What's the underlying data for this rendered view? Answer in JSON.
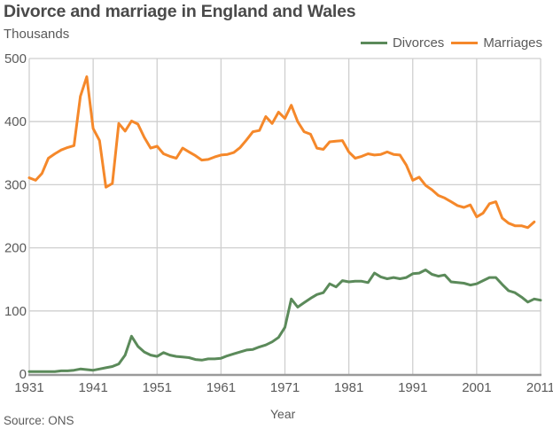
{
  "header": {
    "title": "Divorce and marriage in England and Wales",
    "units": "Thousands"
  },
  "legend": {
    "items": [
      {
        "label": "Divorces",
        "color": "#5b8a5a"
      },
      {
        "label": "Marriages",
        "color": "#f5882a"
      }
    ]
  },
  "footer": {
    "source": "Source: ONS",
    "xlabel": "Year"
  },
  "chart_data": {
    "type": "line",
    "title": "Divorce and marriage in England and Wales",
    "xlabel": "Year",
    "ylabel": "Thousands",
    "xlim": [
      1931,
      2011
    ],
    "ylim": [
      0,
      500
    ],
    "xticks": [
      1931,
      1941,
      1951,
      1961,
      1971,
      1981,
      1991,
      2001,
      2011
    ],
    "yticks": [
      0,
      100,
      200,
      300,
      400,
      500
    ],
    "grid": true,
    "legend_position": "top-right",
    "source": "ONS",
    "x": [
      1931,
      1932,
      1933,
      1934,
      1935,
      1936,
      1937,
      1938,
      1939,
      1940,
      1941,
      1942,
      1943,
      1944,
      1945,
      1946,
      1947,
      1948,
      1949,
      1950,
      1951,
      1952,
      1953,
      1954,
      1955,
      1956,
      1957,
      1958,
      1959,
      1960,
      1961,
      1962,
      1963,
      1964,
      1965,
      1966,
      1967,
      1968,
      1969,
      1970,
      1971,
      1972,
      1973,
      1974,
      1975,
      1976,
      1977,
      1978,
      1979,
      1980,
      1981,
      1982,
      1983,
      1984,
      1985,
      1986,
      1987,
      1988,
      1989,
      1990,
      1991,
      1992,
      1993,
      1994,
      1995,
      1996,
      1997,
      1998,
      1999,
      2000,
      2001,
      2002,
      2003,
      2004,
      2005,
      2006,
      2007,
      2008,
      2009,
      2010,
      2011
    ],
    "series": [
      {
        "name": "Divorces",
        "color": "#5b8a5a",
        "values": [
          4,
          4,
          4,
          4,
          4,
          5,
          5,
          6,
          8,
          7,
          6,
          8,
          10,
          12,
          16,
          30,
          60,
          44,
          35,
          30,
          28,
          34,
          30,
          28,
          27,
          26,
          23,
          22,
          24,
          24,
          25,
          29,
          32,
          35,
          38,
          39,
          43,
          46,
          51,
          58,
          74,
          119,
          106,
          113,
          120,
          126,
          129,
          143,
          138,
          148,
          146,
          147,
          147,
          145,
          160,
          154,
          151,
          153,
          151,
          153,
          159,
          160,
          165,
          158,
          155,
          157,
          146,
          145,
          144,
          141,
          143,
          148,
          153,
          153,
          142,
          132,
          129,
          122,
          114,
          119,
          117
        ]
      },
      {
        "name": "Marriages",
        "color": "#f5882a",
        "values": [
          311,
          307,
          318,
          342,
          349,
          355,
          359,
          362,
          440,
          471,
          389,
          370,
          296,
          302,
          397,
          385,
          401,
          396,
          375,
          358,
          361,
          349,
          345,
          342,
          358,
          352,
          346,
          339,
          340,
          344,
          347,
          348,
          351,
          359,
          371,
          384,
          386,
          408,
          397,
          415,
          405,
          426,
          400,
          384,
          380,
          358,
          356,
          368,
          369,
          370,
          352,
          342,
          345,
          349,
          347,
          348,
          352,
          348,
          347,
          331,
          307,
          312,
          299,
          292,
          283,
          279,
          273,
          267,
          264,
          268,
          249,
          255,
          270,
          273,
          247,
          239,
          235,
          235,
          232,
          241,
          null
        ]
      }
    ]
  }
}
